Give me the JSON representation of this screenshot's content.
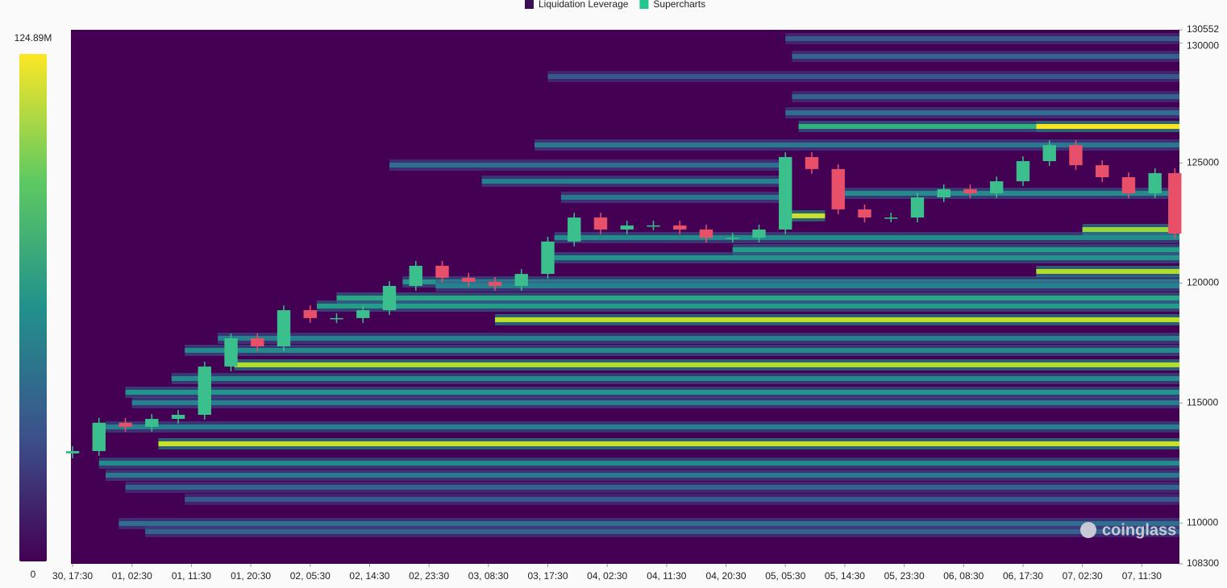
{
  "chart_data": {
    "type": "heatmap-candlestick",
    "legend": [
      {
        "name": "Liquidation Leverage",
        "color": "#3b0f55"
      },
      {
        "name": "Supercharts",
        "color": "#22c78f"
      }
    ],
    "watermark": "coinglass",
    "ylim": [
      108300,
      130552
    ],
    "yticks": [
      {
        "value": 130552,
        "label": "130552"
      },
      {
        "value": 130000,
        "label": "130000"
      },
      {
        "value": 125000,
        "label": "125000"
      },
      {
        "value": 120000,
        "label": "120000"
      },
      {
        "value": 115000,
        "label": "115000"
      },
      {
        "value": 110000,
        "label": "110000"
      },
      {
        "value": 108300,
        "label": "108300"
      }
    ],
    "xlim": [
      -0.25,
      167.7
    ],
    "xticks": [
      {
        "value": 0,
        "label": "30, 17:30"
      },
      {
        "value": 9,
        "label": "01, 02:30"
      },
      {
        "value": 18,
        "label": "01, 11:30"
      },
      {
        "value": 27,
        "label": "01, 20:30"
      },
      {
        "value": 36,
        "label": "02, 05:30"
      },
      {
        "value": 45,
        "label": "02, 14:30"
      },
      {
        "value": 54,
        "label": "02, 23:30"
      },
      {
        "value": 63,
        "label": "03, 08:30"
      },
      {
        "value": 72,
        "label": "03, 17:30"
      },
      {
        "value": 81,
        "label": "04, 02:30"
      },
      {
        "value": 90,
        "label": "04, 11:30"
      },
      {
        "value": 99,
        "label": "04, 20:30"
      },
      {
        "value": 108,
        "label": "05, 05:30"
      },
      {
        "value": 117,
        "label": "05, 14:30"
      },
      {
        "value": 126,
        "label": "05, 23:30"
      },
      {
        "value": 135,
        "label": "06, 08:30"
      },
      {
        "value": 144,
        "label": "06, 17:30"
      },
      {
        "value": 153,
        "label": "07, 02:30"
      },
      {
        "value": 162,
        "label": "07, 11:30"
      }
    ],
    "colorlim": [
      0,
      124.89
    ],
    "colorticks": [
      {
        "value": 124.89,
        "label": "124.89M"
      },
      0
    ],
    "bands": [
      {
        "price": 130183,
        "from": 108,
        "to": 167.7,
        "value": 35
      },
      {
        "price": 129445,
        "from": 109,
        "to": 167.7,
        "value": 40
      },
      {
        "price": 128606,
        "from": 72,
        "to": 167.7,
        "value": 35
      },
      {
        "price": 127767,
        "from": 109,
        "to": 167.7,
        "value": 40
      },
      {
        "price": 127095,
        "from": 108,
        "to": 167.7,
        "value": 45
      },
      {
        "price": 125753,
        "from": 70,
        "to": 167.7,
        "value": 50
      },
      {
        "price": 124914,
        "from": 48,
        "to": 107,
        "value": 45
      },
      {
        "price": 124243,
        "from": 62,
        "to": 108,
        "value": 55
      },
      {
        "price": 123572,
        "from": 74,
        "to": 107,
        "value": 50
      },
      {
        "price": 123739,
        "from": 115,
        "to": 167.7,
        "value": 60
      },
      {
        "price": 121894,
        "from": 73,
        "to": 167.7,
        "value": 60
      },
      {
        "price": 121390,
        "from": 100,
        "to": 167.7,
        "value": 70
      },
      {
        "price": 121055,
        "from": 73,
        "to": 167.7,
        "value": 65
      },
      {
        "price": 120048,
        "from": 50,
        "to": 167.7,
        "value": 65
      },
      {
        "price": 119880,
        "from": 55,
        "to": 167.7,
        "value": 55
      },
      {
        "price": 119377,
        "from": 40,
        "to": 167.7,
        "value": 75
      },
      {
        "price": 119041,
        "from": 37,
        "to": 167.7,
        "value": 70
      },
      {
        "price": 117699,
        "from": 22,
        "to": 167.7,
        "value": 55
      },
      {
        "price": 117195,
        "from": 17,
        "to": 167.7,
        "value": 60
      },
      {
        "price": 116021,
        "from": 15,
        "to": 167.7,
        "value": 60
      },
      {
        "price": 115450,
        "from": 8,
        "to": 167.7,
        "value": 65
      },
      {
        "price": 115014,
        "from": 9,
        "to": 167.7,
        "value": 55
      },
      {
        "price": 114007,
        "from": 5,
        "to": 167.7,
        "value": 55
      },
      {
        "price": 112497,
        "from": 4,
        "to": 167.7,
        "value": 60
      },
      {
        "price": 111993,
        "from": 5,
        "to": 167.7,
        "value": 50
      },
      {
        "price": 111490,
        "from": 8,
        "to": 167.7,
        "value": 40
      },
      {
        "price": 110987,
        "from": 17,
        "to": 167.7,
        "value": 35
      },
      {
        "price": 109980,
        "from": 7,
        "to": 167.7,
        "value": 45
      },
      {
        "price": 109644,
        "from": 11,
        "to": 167.7,
        "value": 40
      },
      {
        "price": 126525,
        "from": 110,
        "to": 146,
        "value": 80
      },
      {
        "price": 126525,
        "from": 146,
        "to": 167.7,
        "value": 124
      },
      {
        "price": 122800,
        "from": 108,
        "to": 114,
        "value": 115
      },
      {
        "price": 122229,
        "from": 153,
        "to": 167.7,
        "value": 105
      },
      {
        "price": 120484,
        "from": 146,
        "to": 167.7,
        "value": 110
      },
      {
        "price": 118470,
        "from": 64,
        "to": 167.7,
        "value": 112
      },
      {
        "price": 116591,
        "from": 24.5,
        "to": 167.7,
        "value": 110
      },
      {
        "price": 113302,
        "from": 13,
        "to": 167.7,
        "value": 115
      }
    ],
    "up_color": "#3bbf8c",
    "down_color": "#e8506a",
    "candles": {
      "x": [
        0,
        4,
        8,
        12,
        16,
        20,
        24,
        28,
        32,
        36,
        40,
        44,
        48,
        52,
        56,
        60,
        64,
        68,
        72,
        76,
        80,
        84,
        88,
        92,
        96,
        100,
        104,
        108,
        112,
        116,
        120,
        124,
        128,
        132,
        136,
        140,
        144,
        148,
        152,
        156,
        160,
        164,
        167
      ],
      "open": [
        112900,
        113000,
        114180,
        114010,
        114340,
        114510,
        116520,
        117700,
        117360,
        118870,
        118540,
        118540,
        118870,
        119880,
        120720,
        120220,
        120050,
        119880,
        120380,
        121730,
        122730,
        122230,
        122400,
        122400,
        122230,
        121890,
        121890,
        122230,
        125250,
        124750,
        123070,
        122730,
        122730,
        123570,
        123910,
        123740,
        124240,
        125080,
        125750,
        124910,
        124410,
        123740,
        124580
      ],
      "high": [
        113200,
        114380,
        114380,
        114540,
        114710,
        116720,
        117900,
        117900,
        119070,
        119070,
        118740,
        119070,
        120080,
        120920,
        120920,
        120420,
        120250,
        120580,
        121930,
        122930,
        122930,
        122600,
        122600,
        122600,
        122430,
        122090,
        122430,
        125450,
        125450,
        124950,
        123270,
        122930,
        123770,
        124110,
        124110,
        124440,
        125280,
        125950,
        125950,
        125110,
        124610,
        124780,
        124780
      ],
      "low": [
        112700,
        112800,
        113810,
        113810,
        114140,
        114310,
        116320,
        117160,
        117160,
        118340,
        118340,
        118340,
        118670,
        119680,
        120020,
        119850,
        119680,
        119680,
        120180,
        121530,
        122030,
        122030,
        122200,
        122030,
        121690,
        121690,
        121690,
        122030,
        124550,
        122870,
        122530,
        122530,
        122530,
        123370,
        123540,
        123540,
        124040,
        124880,
        124710,
        124210,
        123540,
        123540,
        121860
      ],
      "close": [
        113000,
        114180,
        114010,
        114340,
        114510,
        116520,
        117700,
        117360,
        118870,
        118540,
        118540,
        118870,
        119880,
        120720,
        120220,
        120050,
        119880,
        120380,
        121730,
        122730,
        122230,
        122400,
        122400,
        122230,
        121890,
        121890,
        122230,
        125250,
        124750,
        123070,
        122730,
        122730,
        123570,
        123910,
        123740,
        124240,
        125080,
        125750,
        124910,
        124410,
        123740,
        124580,
        122060
      ]
    }
  }
}
